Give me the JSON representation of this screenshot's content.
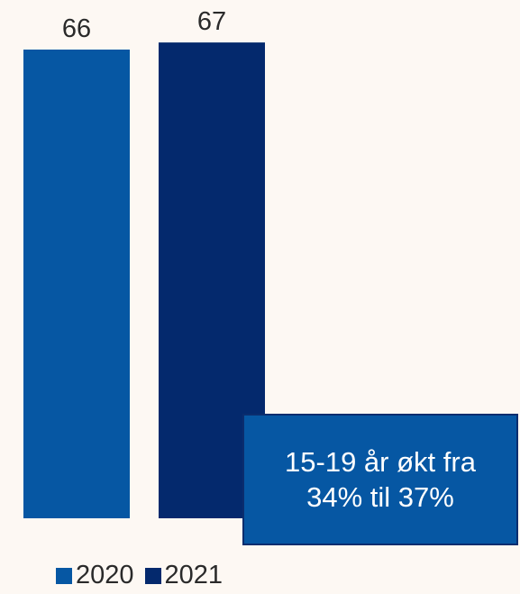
{
  "chart_data": {
    "type": "bar",
    "categories": [
      ""
    ],
    "series": [
      {
        "name": "2020",
        "values": [
          66
        ],
        "color": "#0657a3"
      },
      {
        "name": "2021",
        "values": [
          67
        ],
        "color": "#04296d"
      }
    ],
    "data_labels": [
      "66",
      "67"
    ],
    "title": "",
    "xlabel": "",
    "ylabel": "",
    "grid": false,
    "legend_position": "bottom-left",
    "annotation": {
      "line1": "15-19 år økt fra",
      "line2": "34% til 37%"
    }
  },
  "colors": {
    "background": "#fdf8f3",
    "series_2020": "#0657a3",
    "series_2021": "#04296d",
    "callout_fill": "#0657a3",
    "callout_border": "#0a2d6e"
  }
}
